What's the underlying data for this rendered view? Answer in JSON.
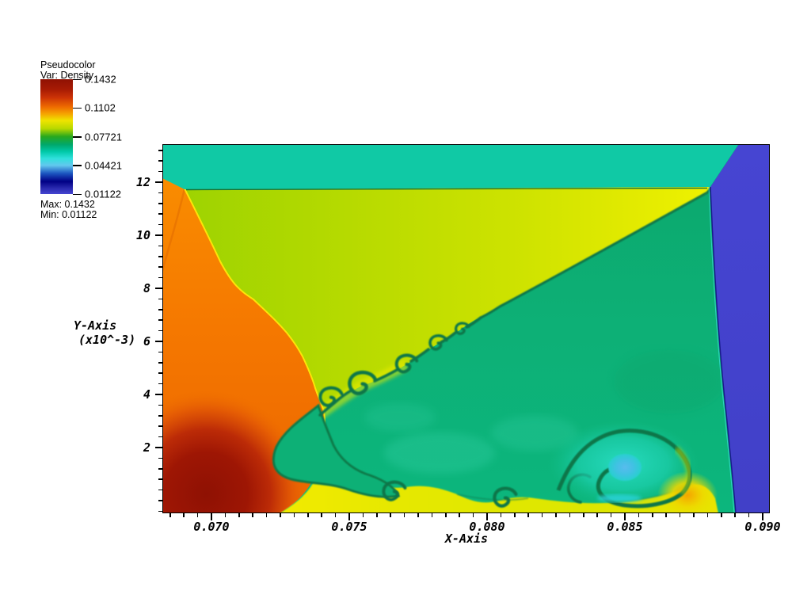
{
  "legend": {
    "title": "Pseudocolor",
    "subtitle": "Var: Density",
    "ticks": [
      "0.1432",
      "0.1102",
      "0.07721",
      "0.04421",
      "0.01122"
    ],
    "max_label": "Max: 0.1432",
    "min_label": "Min: 0.01122"
  },
  "axes": {
    "x": {
      "label": "X-Axis",
      "ticks": [
        "0.070",
        "0.075",
        "0.080",
        "0.085",
        "0.090"
      ]
    },
    "y": {
      "label": "Y-Axis",
      "unit_label": "(x10^-3)",
      "ticks": [
        "2",
        "4",
        "6",
        "8",
        "10",
        "12"
      ]
    }
  },
  "chart_data": {
    "type": "heatmap",
    "subtype": "pseudocolor-shock-simulation",
    "variable": "Density",
    "min": 0.01122,
    "max": 0.1432,
    "colorbar_ticks": [
      0.1432,
      0.1102,
      0.07721,
      0.04421,
      0.01122
    ],
    "colormap_top_to_bottom": [
      "#8F1103",
      "#CC3306",
      "#EE6A00",
      "#EFE400",
      "#B8D800",
      "#28A81E",
      "#00A86C",
      "#00C9A8",
      "#2FE0DC",
      "#62C8EE",
      "#1C55C0",
      "#000085",
      "#4545D0"
    ],
    "x_axis": {
      "label": "X-Axis",
      "range": [
        0.0681,
        0.0903
      ],
      "major_ticks": [
        0.07,
        0.075,
        0.08,
        0.085,
        0.09
      ],
      "minor_tick_step": 0.0005
    },
    "y_axis": {
      "label": "Y-Axis",
      "units": "x10^-3",
      "range": [
        -0.5,
        13.4
      ],
      "major_ticks": [
        2,
        4,
        6,
        8,
        10,
        12
      ],
      "minor_tick_step": 0.4
    },
    "features": [
      {
        "name": "post-shock band along top",
        "color": "#10C9A5",
        "approx_density": 0.058,
        "extent": "y > 11.9e-3, full width"
      },
      {
        "name": "incident-shock high-density region (left)",
        "color": "#F57A00",
        "approx_density": 0.115,
        "extent": "left of curved reflected shock from (0.0685,12e-3) to (0.0735,1.5e-3)"
      },
      {
        "name": "near-wall maximum-density blob",
        "color": "#9C1408",
        "approx_density": 0.14,
        "center": [
          0.0702,
          0.0008
        ]
      },
      {
        "name": "contact wedge between shocks",
        "color": "#C8DF00",
        "approx_density": 0.085,
        "extent": "triangle under top band, above slip line"
      },
      {
        "name": "slip line with Kelvin-Helmholtz vortices",
        "color": "#0A7A4A",
        "from": [
          0.0738,
          1.5
        ],
        "to": [
          0.088,
          11.8
        ]
      },
      {
        "name": "post-Mach-stem region",
        "color": "#0DAE74",
        "approx_density": 0.065,
        "extent": "below slip line"
      },
      {
        "name": "wall jet (yellow band along bottom wall)",
        "color": "#E8E800",
        "approx_density": 0.082
      },
      {
        "name": "primary rolled-up vortex",
        "center": [
          0.0845,
          0.0015
        ],
        "core_color": "#4FBCE8",
        "halo_color": "#2BDCC8",
        "core_density": 0.035
      },
      {
        "name": "undisturbed low-density column (right)",
        "color": "#4444CE",
        "approx_density": 0.012,
        "extent": "x > 0.0885"
      }
    ]
  }
}
